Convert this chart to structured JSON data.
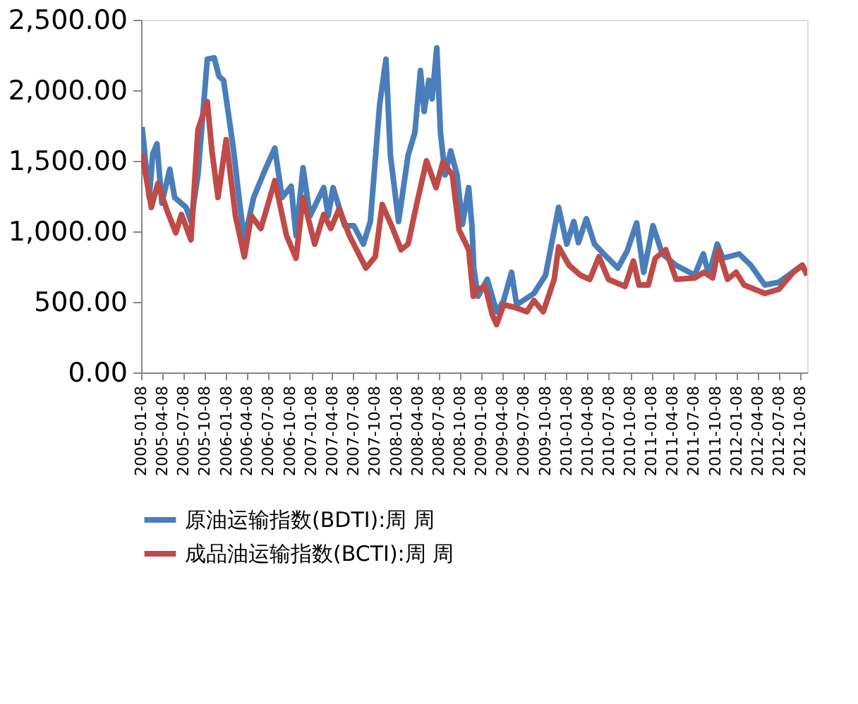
{
  "chart_data": {
    "type": "line",
    "xlim": [
      "2005-01-08",
      "2012-11-06"
    ],
    "xticks": [
      "2005-01-08",
      "2005-04-08",
      "2005-07-08",
      "2005-10-08",
      "2006-01-08",
      "2006-04-08",
      "2006-07-08",
      "2006-10-08",
      "2007-01-08",
      "2007-04-08",
      "2007-07-08",
      "2007-10-08",
      "2008-01-08",
      "2008-04-08",
      "2008-07-08",
      "2008-10-08",
      "2009-01-08",
      "2009-04-08",
      "2009-07-08",
      "2009-10-08",
      "2010-01-08",
      "2010-04-08",
      "2010-07-08",
      "2010-10-08",
      "2011-01-08",
      "2011-04-08",
      "2011-07-08",
      "2011-10-08",
      "2012-01-08",
      "2012-04-08",
      "2012-07-08",
      "2012-10-08"
    ],
    "ylim": [
      0,
      2500
    ],
    "yticks": [
      {
        "value": 0,
        "label": "0.00"
      },
      {
        "value": 500,
        "label": "500.00"
      },
      {
        "value": 1000,
        "label": "1,000.00"
      },
      {
        "value": 1500,
        "label": "1,500.00"
      },
      {
        "value": 2000,
        "label": "2,000.00"
      },
      {
        "value": 2500,
        "label": "2,500.00"
      }
    ],
    "grid": false,
    "legend": "bottom",
    "marker": "none",
    "line_style": "solid",
    "series": [
      {
        "name": "原油运输指数(BDTI):周 周",
        "color": "#4a7ebb",
        "x": [
          "2005-01-12",
          "2005-02-12",
          "2005-02-27",
          "2005-03-17",
          "2005-04-07",
          "2005-05-11",
          "2005-06-01",
          "2005-07-20",
          "2005-08-10",
          "2005-09-09",
          "2005-10-19",
          "2005-11-18",
          "2005-12-08",
          "2005-12-28",
          "2006-02-07",
          "2006-03-07",
          "2006-03-27",
          "2006-05-06",
          "2006-06-25",
          "2006-08-05",
          "2006-09-05",
          "2006-10-14",
          "2006-11-04",
          "2006-12-04",
          "2007-01-03",
          "2007-03-03",
          "2007-03-22",
          "2007-04-12",
          "2007-06-01",
          "2007-07-10",
          "2007-08-20",
          "2007-09-19",
          "2007-10-29",
          "2007-11-25",
          "2007-12-14",
          "2008-01-18",
          "2008-02-28",
          "2008-03-28",
          "2008-04-21",
          "2008-05-07",
          "2008-05-27",
          "2008-06-10",
          "2008-06-30",
          "2008-07-16",
          "2008-08-05",
          "2008-08-29",
          "2008-09-25",
          "2008-10-18",
          "2008-11-14",
          "2008-11-28",
          "2008-12-06",
          "2008-12-24",
          "2009-02-02",
          "2009-03-14",
          "2009-04-13",
          "2009-05-17",
          "2009-06-08",
          "2009-08-21",
          "2009-10-10",
          "2009-12-05",
          "2010-01-09",
          "2010-02-08",
          "2010-02-28",
          "2010-04-03",
          "2010-05-08",
          "2010-06-17",
          "2010-08-16",
          "2010-09-25",
          "2010-11-05",
          "2010-12-05",
          "2011-01-14",
          "2011-02-23",
          "2011-04-23",
          "2011-07-12",
          "2011-08-18",
          "2011-09-11",
          "2011-10-17",
          "2011-11-10",
          "2012-01-19",
          "2012-03-09",
          "2012-05-08",
          "2012-07-08",
          "2012-10-16",
          "2012-11-06"
        ],
        "values": [
          1740,
          1240,
          1550,
          1620,
          1200,
          1440,
          1240,
          1170,
          1070,
          1400,
          2220,
          2230,
          2100,
          2070,
          1600,
          1200,
          940,
          1240,
          1440,
          1590,
          1240,
          1320,
          970,
          1450,
          1110,
          1310,
          1110,
          1310,
          1040,
          1040,
          910,
          1070,
          1900,
          2220,
          1540,
          1070,
          1540,
          1700,
          2140,
          1850,
          2070,
          1940,
          2300,
          1700,
          1400,
          1570,
          1400,
          1050,
          1310,
          1040,
          740,
          540,
          660,
          430,
          510,
          710,
          480,
          560,
          690,
          1170,
          910,
          1070,
          920,
          1090,
          910,
          840,
          740,
          860,
          1060,
          710,
          1040,
          840,
          760,
          690,
          840,
          690,
          910,
          810,
          840,
          760,
          620,
          640,
          760,
          690
        ]
      },
      {
        "name": "成品油运输指数(BCTI):周 周",
        "color": "#be4b48",
        "x": [
          "2005-01-12",
          "2005-02-21",
          "2005-03-21",
          "2005-05-01",
          "2005-06-06",
          "2005-06-30",
          "2005-08-10",
          "2005-09-09",
          "2005-10-19",
          "2005-11-08",
          "2005-12-04",
          "2006-01-08",
          "2006-02-17",
          "2006-03-27",
          "2006-04-26",
          "2006-06-06",
          "2006-08-05",
          "2006-09-24",
          "2006-11-04",
          "2006-12-04",
          "2007-01-23",
          "2007-03-03",
          "2007-04-02",
          "2007-05-08",
          "2007-06-21",
          "2007-08-31",
          "2007-10-10",
          "2007-11-09",
          "2007-12-19",
          "2008-01-29",
          "2008-02-28",
          "2008-04-07",
          "2008-05-17",
          "2008-06-27",
          "2008-07-26",
          "2008-09-05",
          "2008-10-04",
          "2008-11-14",
          "2008-12-04",
          "2008-12-24",
          "2009-01-24",
          "2009-02-23",
          "2009-03-14",
          "2009-04-13",
          "2009-06-02",
          "2009-07-22",
          "2009-08-21",
          "2009-09-30",
          "2009-11-16",
          "2009-12-05",
          "2010-01-19",
          "2010-03-08",
          "2010-04-18",
          "2010-05-27",
          "2010-07-07",
          "2010-09-16",
          "2010-10-22",
          "2010-11-15",
          "2010-12-25",
          "2011-01-24",
          "2011-03-10",
          "2011-04-23",
          "2011-07-12",
          "2011-08-21",
          "2011-09-27",
          "2011-10-21",
          "2011-11-30",
          "2012-01-06",
          "2012-02-09",
          "2012-05-08",
          "2012-07-08",
          "2012-09-07",
          "2012-10-16",
          "2012-11-06"
        ],
        "values": [
          1550,
          1170,
          1340,
          1140,
          990,
          1120,
          940,
          1720,
          1920,
          1570,
          1240,
          1650,
          1110,
          820,
          1110,
          1020,
          1360,
          970,
          810,
          1240,
          910,
          1120,
          1020,
          1160,
          970,
          740,
          820,
          1190,
          1040,
          870,
          910,
          1210,
          1500,
          1310,
          1490,
          1400,
          1010,
          870,
          540,
          590,
          610,
          410,
          340,
          480,
          460,
          430,
          510,
          430,
          660,
          890,
          760,
          690,
          660,
          820,
          660,
          610,
          790,
          620,
          620,
          810,
          870,
          660,
          670,
          710,
          670,
          870,
          660,
          710,
          620,
          560,
          590,
          710,
          760,
          690
        ]
      }
    ]
  }
}
